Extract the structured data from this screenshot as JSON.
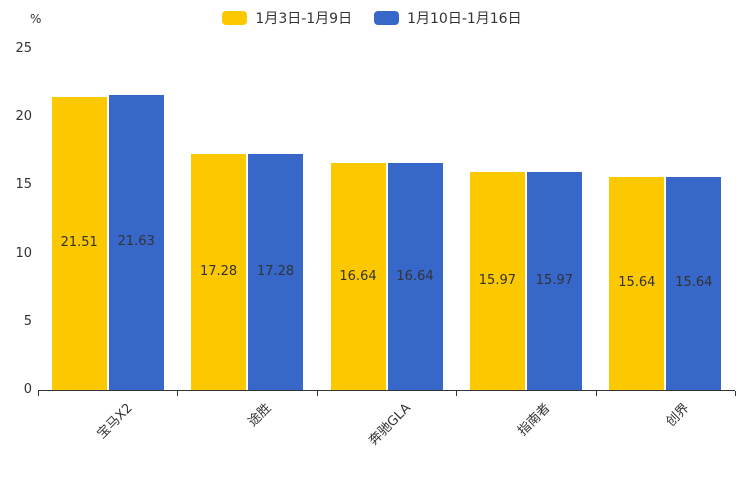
{
  "chart_data": {
    "type": "bar",
    "title": "",
    "legend_position": "top",
    "grid": false,
    "categories": [
      "宝马X2",
      "途胜",
      "奔驰GLA",
      "指南者",
      "创界"
    ],
    "series": [
      {
        "name": "1月3日-1月9日",
        "color": "#FCC800",
        "values": [
          21.51,
          17.28,
          16.64,
          15.97,
          15.64
        ]
      },
      {
        "name": "1月10日-1月16日",
        "color": "#3667C9",
        "values": [
          21.63,
          17.28,
          16.64,
          15.97,
          15.64
        ]
      }
    ],
    "xlabel": "",
    "ylabel": "%",
    "ylim": [
      0,
      25
    ],
    "y_ticks": [
      0,
      5,
      10,
      15,
      20,
      25
    ],
    "value_labels_shown": true,
    "text_color": "#333333",
    "axis_color": "#333333"
  }
}
